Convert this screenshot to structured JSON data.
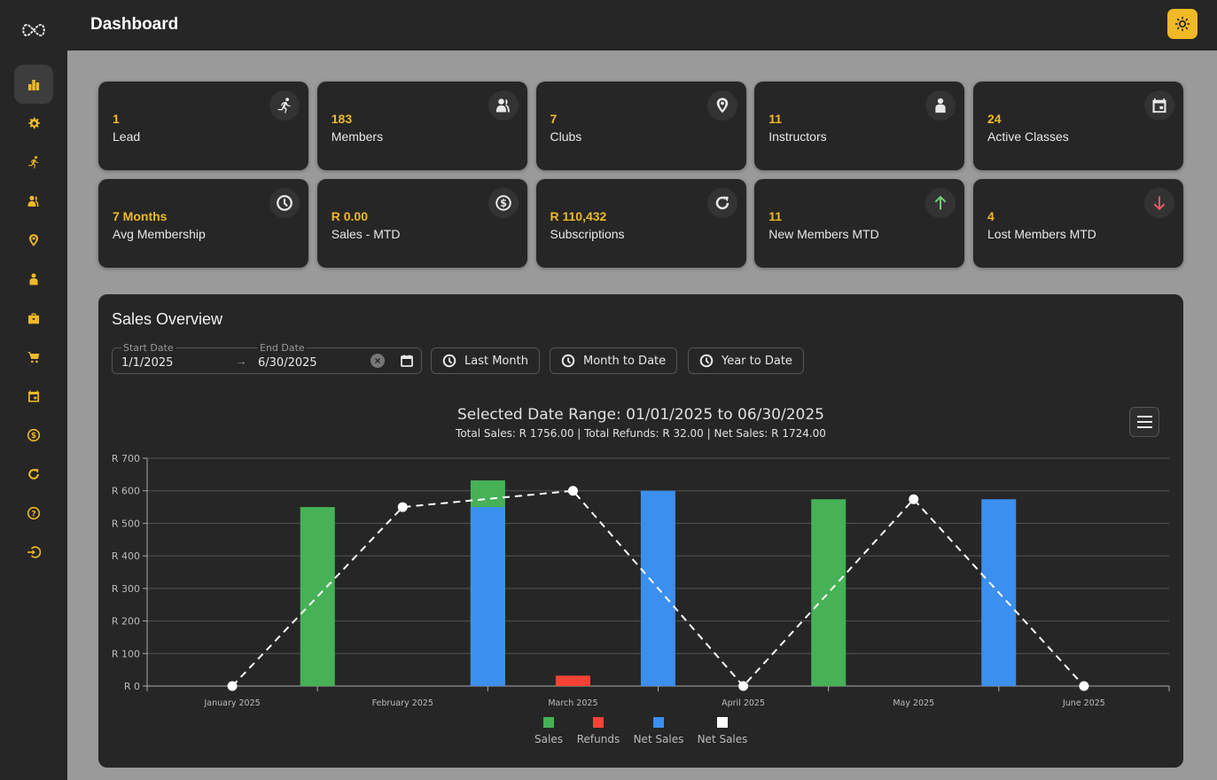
{
  "app": {
    "page_title": "Dashboard",
    "theme_toggle_icon": "sun-icon"
  },
  "sidebar": {
    "logo_icon": "infinity-logo-icon",
    "items": [
      {
        "name": "dashboard",
        "icon": "bar-chart-icon",
        "active": true
      },
      {
        "name": "settings",
        "icon": "gear-icon",
        "active": false
      },
      {
        "name": "leads",
        "icon": "running-person-icon",
        "active": false
      },
      {
        "name": "members",
        "icon": "people-icon",
        "active": false
      },
      {
        "name": "clubs",
        "icon": "location-pin-icon",
        "active": false
      },
      {
        "name": "instructors",
        "icon": "person-icon",
        "active": false
      },
      {
        "name": "products",
        "icon": "toolbox-icon",
        "active": false
      },
      {
        "name": "shop",
        "icon": "cart-icon",
        "active": false
      },
      {
        "name": "classes",
        "icon": "calendar-icon",
        "active": false
      },
      {
        "name": "sales",
        "icon": "dollar-circle-icon",
        "active": false
      },
      {
        "name": "subscriptions",
        "icon": "refresh-icon",
        "active": false
      },
      {
        "name": "help",
        "icon": "question-circle-icon",
        "active": false
      },
      {
        "name": "logout",
        "icon": "sign-out-icon",
        "active": false
      }
    ]
  },
  "stats": [
    {
      "value": "1",
      "label": "Lead",
      "icon": "running-person-icon"
    },
    {
      "value": "183",
      "label": "Members",
      "icon": "people-icon"
    },
    {
      "value": "7",
      "label": "Clubs",
      "icon": "location-pin-icon"
    },
    {
      "value": "11",
      "label": "Instructors",
      "icon": "person-icon"
    },
    {
      "value": "24",
      "label": "Active Classes",
      "icon": "calendar-icon"
    },
    {
      "value": "7 Months",
      "label": "Avg Membership",
      "icon": "clock-icon"
    },
    {
      "value": "R 0.00",
      "label": "Sales - MTD",
      "icon": "dollar-circle-icon"
    },
    {
      "value": "R 110,432",
      "label": "Subscriptions",
      "icon": "refresh-icon"
    },
    {
      "value": "11",
      "label": "New Members MTD",
      "icon": "arrow-up-icon"
    },
    {
      "value": "4",
      "label": "Lost Members MTD",
      "icon": "arrow-down-icon"
    }
  ],
  "sales_overview": {
    "title": "Sales Overview",
    "date_range": {
      "start_label": "Start Date",
      "start_value": "1/1/2025",
      "end_label": "End Date",
      "end_value": "6/30/2025"
    },
    "presets": [
      "Last Month",
      "Month to Date",
      "Year to Date"
    ]
  },
  "colors": {
    "accent": "#f0b925",
    "sales": "#46b156",
    "refunds": "#f44336",
    "net_sales": "#3b8fef",
    "net_sales_line": "#ffffff",
    "arrow_up": "#6fcf73",
    "arrow_down": "#ef5561"
  },
  "chart_data": {
    "type": "bar",
    "title": "Selected Date Range: 01/01/2025 to 06/30/2025",
    "subtitle": "Total Sales: R 1756.00 | Total Refunds: R 32.00 | Net Sales: R 1724.00",
    "categories": [
      "January 2025",
      "February 2025",
      "March 2025",
      "April 2025",
      "May 2025",
      "June 2025"
    ],
    "series": [
      {
        "name": "Sales",
        "type": "bar",
        "color": "#46b156",
        "values": [
          0,
          550,
          632,
          0,
          574,
          0
        ]
      },
      {
        "name": "Refunds",
        "type": "bar",
        "color": "#f44336",
        "values": [
          0,
          0,
          32,
          0,
          0,
          0
        ]
      },
      {
        "name": "Net Sales",
        "type": "bar",
        "color": "#3b8fef",
        "values": [
          0,
          550,
          600,
          0,
          574,
          0
        ]
      },
      {
        "name": "Net Sales",
        "type": "line",
        "style": "dashed",
        "color": "#ffffff",
        "values": [
          0,
          550,
          600,
          0,
          574,
          0
        ]
      }
    ],
    "y_ticks": [
      "R 0",
      "R 100",
      "R 200",
      "R 300",
      "R 400",
      "R 500",
      "R 600",
      "R 700"
    ],
    "ylim": [
      0,
      700
    ],
    "xlabel": "",
    "ylabel": "",
    "grid": true,
    "legend_position": "bottom"
  }
}
